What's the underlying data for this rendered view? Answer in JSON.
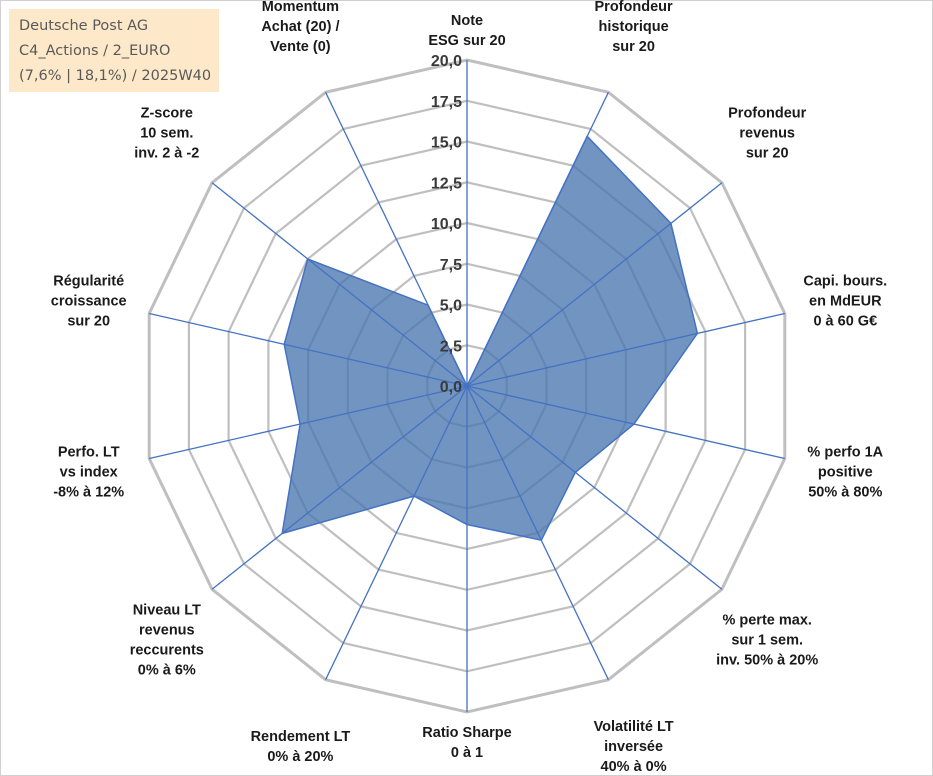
{
  "info": {
    "line1": "Deutsche Post AG",
    "line2": "C4_Actions / 2_EURO",
    "line3": "(7,6% | 18,1%) / 2025W40"
  },
  "chart_data": {
    "type": "radar",
    "title": "Deutsche Post AG",
    "rmin": 0,
    "rmax": 20,
    "tick_step": 2.5,
    "ticks": [
      "0,0",
      "2,5",
      "5,0",
      "7,5",
      "10,0",
      "12,5",
      "15,0",
      "17,5",
      "20,0"
    ],
    "axes": [
      {
        "label": [
          "Note",
          "ESG sur 20"
        ],
        "value": 0
      },
      {
        "label": [
          "Profondeur",
          "historique",
          "sur 20"
        ],
        "value": 17
      },
      {
        "label": [
          "Profondeur",
          "revenus",
          "sur 20"
        ],
        "value": 16
      },
      {
        "label": [
          "Capi. bours.",
          "en MdEUR",
          "0 à 60 G€"
        ],
        "value": 14.5
      },
      {
        "label": [
          "% perfo 1A",
          "positive",
          "50% à 80%"
        ],
        "value": 10.5
      },
      {
        "label": [
          "% perte max.",
          "sur 1 sem.",
          "inv. 50% à 20%"
        ],
        "value": 8.5
      },
      {
        "label": [
          "Volatilité LT",
          "inversée",
          "40% à 0%"
        ],
        "value": 10.5
      },
      {
        "label": [
          "Ratio Sharpe",
          "0 à 1"
        ],
        "value": 8.5
      },
      {
        "label": [
          "Rendement LT",
          "0% à 20%"
        ],
        "value": 7.5
      },
      {
        "label": [
          "Niveau LT",
          "revenus",
          "reccurents",
          "0% à 6%"
        ],
        "value": 14.5
      },
      {
        "label": [
          "Perfo. LT",
          "vs index",
          "-8% à 12%"
        ],
        "value": 10.5
      },
      {
        "label": [
          "Régularité",
          "croissance",
          "sur 20"
        ],
        "value": 11.5
      },
      {
        "label": [
          "Z-score",
          "10 sem.",
          "inv. 2 à -2"
        ],
        "value": 12.5
      },
      {
        "label": [
          "Momentum",
          "Achat (20) /",
          "Vente (0)"
        ],
        "value": 5.5
      }
    ],
    "series": [
      {
        "name": "Deutsche Post AG",
        "color": "#4a76b0"
      }
    ],
    "colors": {
      "fill": "#4a76b0",
      "outline": "#4472c4",
      "grid": "#bfbfbf",
      "spoke": "#4472c4"
    }
  }
}
